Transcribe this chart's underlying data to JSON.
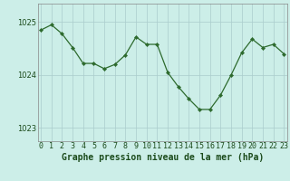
{
  "x": [
    0,
    1,
    2,
    3,
    4,
    5,
    6,
    7,
    8,
    9,
    10,
    11,
    12,
    13,
    14,
    15,
    16,
    17,
    18,
    19,
    20,
    21,
    22,
    23
  ],
  "y": [
    1024.85,
    1024.95,
    1024.78,
    1024.52,
    1024.22,
    1024.22,
    1024.12,
    1024.2,
    1024.38,
    1024.72,
    1024.58,
    1024.58,
    1024.05,
    1023.78,
    1023.55,
    1023.35,
    1023.35,
    1023.62,
    1024.0,
    1024.42,
    1024.68,
    1024.52,
    1024.58,
    1024.4
  ],
  "ylim": [
    1022.75,
    1025.35
  ],
  "yticks": [
    1023,
    1024,
    1025
  ],
  "xticks": [
    0,
    1,
    2,
    3,
    4,
    5,
    6,
    7,
    8,
    9,
    10,
    11,
    12,
    13,
    14,
    15,
    16,
    17,
    18,
    19,
    20,
    21,
    22,
    23
  ],
  "line_color": "#2d6a2d",
  "marker_color": "#2d6a2d",
  "bg_color": "#cceee8",
  "grid_color": "#aacccc",
  "xlabel": "Graphe pression niveau de la mer (hPa)",
  "xlabel_color": "#1a4a1a",
  "tick_color": "#1a4a1a",
  "tick_fontsize": 6.0,
  "xlabel_fontsize": 7.0
}
